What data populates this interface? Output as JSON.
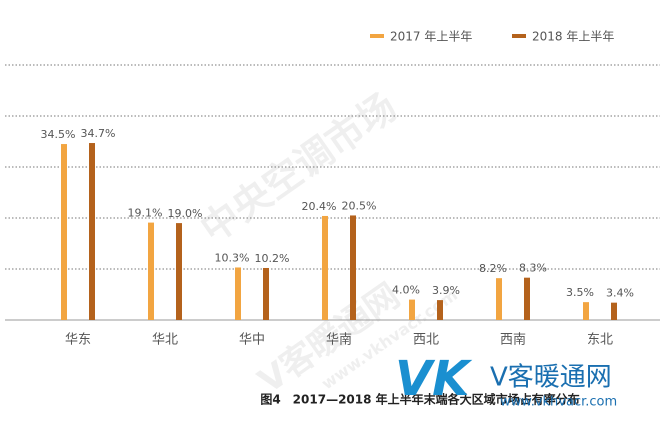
{
  "chart_data": {
    "type": "bar",
    "title": "图4　2017—2018 年上半年末端各大区域市场占有率分布",
    "categories": [
      "华东",
      "华北",
      "华中",
      "华南",
      "西北",
      "西南",
      "东北"
    ],
    "series": [
      {
        "name": "2017 年上半年",
        "color": "#f2a541",
        "values": [
          34.5,
          19.1,
          10.3,
          20.4,
          4.0,
          8.2,
          3.5
        ],
        "value_labels": [
          "34.5%",
          "19.1%",
          "10.3%",
          "20.4%",
          "4.0%",
          "8.2%",
          "3.5%"
        ]
      },
      {
        "name": "2018 年上半年",
        "color": "#b4621c",
        "values": [
          34.7,
          19.0,
          10.2,
          20.5,
          3.9,
          8.3,
          3.4
        ],
        "value_labels": [
          "34.7%",
          "19.0%",
          "10.2%",
          "20.5%",
          "3.9%",
          "8.3%",
          "3.4%"
        ]
      }
    ],
    "ylim": [
      0,
      50
    ],
    "yticks": [
      0,
      10,
      20,
      30,
      40,
      50
    ],
    "grid": true,
    "legend": "top-right",
    "watermarks": [
      "中央空调市场",
      "V客暖通网",
      "www.vkhvacr.com"
    ],
    "logo": {
      "mark": "VK",
      "name": "V客暖通网",
      "url": "www.vkhvacr.com"
    }
  }
}
